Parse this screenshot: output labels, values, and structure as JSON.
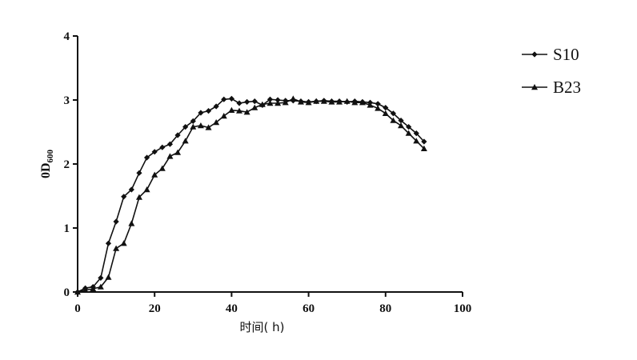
{
  "chart_data": {
    "type": "line",
    "xlabel": "时间( h)",
    "ylabel_main": "0D",
    "ylabel_sub": "600",
    "xlim": [
      0,
      100
    ],
    "ylim": [
      0,
      4
    ],
    "xticks": [
      "0",
      "20",
      "40",
      "60",
      "80",
      "100"
    ],
    "yticks": [
      "0",
      "1",
      "2",
      "3",
      "4"
    ],
    "grid": false,
    "legend_position": "top-right",
    "series": [
      {
        "name": "S10",
        "marker": "diamond",
        "color": "#111111",
        "x": [
          0,
          2,
          4,
          6,
          8,
          10,
          12,
          14,
          16,
          18,
          20,
          22,
          24,
          26,
          28,
          30,
          32,
          34,
          36,
          38,
          40,
          42,
          44,
          46,
          48,
          50,
          52,
          54,
          56,
          58,
          60,
          62,
          64,
          66,
          68,
          70,
          72,
          74,
          76,
          78,
          80,
          82,
          84,
          86,
          88,
          90
        ],
        "y": [
          0.0,
          0.06,
          0.08,
          0.22,
          0.76,
          1.1,
          1.49,
          1.6,
          1.86,
          2.1,
          2.19,
          2.26,
          2.31,
          2.45,
          2.58,
          2.67,
          2.8,
          2.83,
          2.9,
          3.01,
          3.02,
          2.95,
          2.97,
          2.98,
          2.92,
          3.01,
          3.0,
          2.99,
          2.99,
          2.98,
          2.97,
          2.98,
          2.99,
          2.98,
          2.98,
          2.97,
          2.98,
          2.97,
          2.96,
          2.94,
          2.88,
          2.79,
          2.68,
          2.58,
          2.48,
          2.35
        ]
      },
      {
        "name": "B23",
        "marker": "triangle",
        "color": "#111111",
        "x": [
          0,
          2,
          4,
          6,
          8,
          10,
          12,
          14,
          16,
          18,
          20,
          22,
          24,
          26,
          28,
          30,
          32,
          34,
          36,
          38,
          40,
          42,
          44,
          46,
          48,
          50,
          52,
          54,
          56,
          58,
          60,
          62,
          64,
          66,
          68,
          70,
          72,
          74,
          76,
          78,
          80,
          82,
          84,
          86,
          88,
          90
        ],
        "y": [
          0.0,
          0.03,
          0.05,
          0.08,
          0.23,
          0.68,
          0.76,
          1.07,
          1.48,
          1.6,
          1.83,
          1.93,
          2.12,
          2.18,
          2.36,
          2.58,
          2.6,
          2.57,
          2.65,
          2.75,
          2.84,
          2.83,
          2.81,
          2.88,
          2.93,
          2.95,
          2.95,
          2.96,
          3.02,
          2.97,
          2.96,
          2.98,
          2.98,
          2.97,
          2.97,
          2.98,
          2.96,
          2.96,
          2.92,
          2.87,
          2.79,
          2.68,
          2.6,
          2.48,
          2.36,
          2.24
        ]
      }
    ]
  }
}
